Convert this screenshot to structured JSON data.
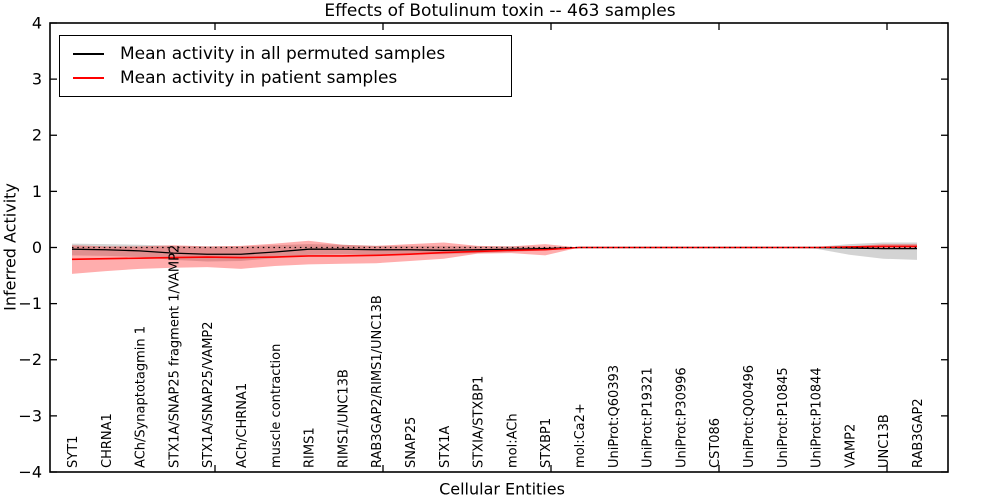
{
  "figure": {
    "title": "Effects of Botulinum toxin -- 463 samples",
    "xlabel": "Cellular Entities",
    "ylabel": "Inferred Activity"
  },
  "chart_data": {
    "type": "line",
    "title": "Effects of Botulinum toxin -- 463 samples",
    "xlabel": "Cellular Entities",
    "ylabel": "Inferred Activity",
    "ylim": [
      -4,
      4
    ],
    "yticks": [
      4,
      3,
      2,
      1,
      0,
      -1,
      -2,
      -3,
      -4
    ],
    "yticklabels": [
      "4",
      "3",
      "2",
      "1",
      "0",
      "−1",
      "−2",
      "−3",
      "−4"
    ],
    "grid": false,
    "legend_position": "upper left",
    "zero_reference_line": {
      "y": 0,
      "style": "dotted",
      "color": "#000000"
    },
    "categories": [
      "SYT1",
      "CHRNA1",
      "ACh/Synaptotagmin 1",
      "STX1A/SNAP25 fragment 1/VAMP2",
      "STX1A/SNAP25/VAMP2",
      "ACh/CHRNA1",
      "muscle contraction",
      "RIMS1",
      "RIMS1/UNC13B",
      "RAB3GAP2/RIMS1/UNC13B",
      "SNAP25",
      "STX1A",
      "STXIA/STXBP1",
      "mol:ACh",
      "STXBP1",
      "mol:Ca2+",
      "UniProt:Q60393",
      "UniProt:P19321",
      "UniProt:P30996",
      "CST086",
      "UniProt:Q00496",
      "UniProt:P10845",
      "UniProt:P10844",
      "VAMP2",
      "UNC13B",
      "RAB3GAP2"
    ],
    "series": [
      {
        "name": "Mean activity in all permuted samples",
        "color": "#000000",
        "values": [
          -0.03,
          -0.04,
          -0.06,
          -0.1,
          -0.12,
          -0.12,
          -0.08,
          -0.03,
          -0.03,
          -0.04,
          -0.04,
          -0.05,
          -0.04,
          -0.03,
          -0.02,
          0,
          0,
          0,
          0,
          0,
          0,
          0,
          0,
          -0.01,
          -0.02,
          -0.02
        ],
        "band_upper": [
          0.07,
          0.06,
          0.05,
          0.03,
          0.02,
          0.02,
          0.04,
          0.06,
          0.05,
          0.03,
          0.03,
          0.03,
          0.02,
          0.02,
          0.01,
          0,
          0,
          0,
          0,
          0,
          0,
          0,
          0.01,
          0.06,
          0.09,
          0.09
        ],
        "band_lower": [
          -0.14,
          -0.15,
          -0.17,
          -0.22,
          -0.25,
          -0.24,
          -0.19,
          -0.13,
          -0.12,
          -0.13,
          -0.12,
          -0.12,
          -0.1,
          -0.08,
          -0.05,
          0,
          0,
          0,
          0,
          0,
          0,
          0,
          -0.02,
          -0.13,
          -0.2,
          -0.22
        ],
        "band_color": "rgba(128,128,128,0.35)"
      },
      {
        "name": "Mean activity in patient samples",
        "color": "#ff0000",
        "values": [
          -0.21,
          -0.2,
          -0.19,
          -0.18,
          -0.17,
          -0.18,
          -0.17,
          -0.15,
          -0.15,
          -0.14,
          -0.12,
          -0.09,
          -0.07,
          -0.05,
          -0.04,
          0,
          0,
          0,
          0,
          0,
          0,
          0,
          0,
          0.01,
          0.02,
          0.02
        ],
        "band_upper": [
          0.04,
          0.02,
          0.02,
          0.04,
          0.02,
          0.03,
          0.07,
          0.12,
          0.05,
          0.03,
          0.06,
          0.09,
          0.03,
          0.02,
          0.06,
          0,
          0,
          0,
          0,
          0,
          0,
          0,
          0,
          0.02,
          0.06,
          0.06
        ],
        "band_lower": [
          -0.47,
          -0.42,
          -0.38,
          -0.36,
          -0.35,
          -0.38,
          -0.33,
          -0.3,
          -0.29,
          -0.28,
          -0.24,
          -0.2,
          -0.11,
          -0.1,
          -0.14,
          0,
          0,
          0,
          0,
          0,
          0,
          0,
          0,
          -0.01,
          -0.03,
          -0.03
        ],
        "band_color": "rgba(255,0,0,0.32)"
      }
    ]
  }
}
